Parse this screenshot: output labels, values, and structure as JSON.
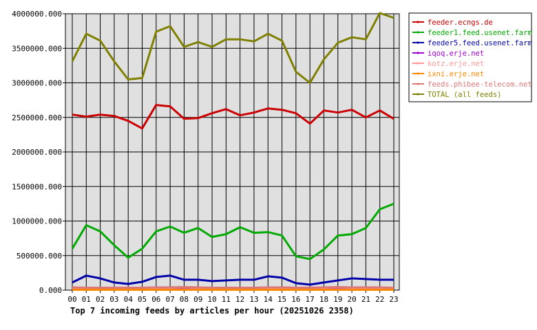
{
  "chart_data": {
    "type": "line",
    "title": "Top 7 incoming feeds by articles per hour (20251026 2358)",
    "xlabel": "",
    "ylabel": "",
    "ylim": [
      0,
      4000000
    ],
    "yticks": [
      "0.000",
      "500000.000",
      "1000000.000",
      "1500000.000",
      "2000000.000",
      "2500000.000",
      "3000000.000",
      "3500000.000",
      "4000000.000"
    ],
    "yticks_values": [
      0,
      500000,
      1000000,
      1500000,
      2000000,
      2500000,
      3000000,
      3500000,
      4000000
    ],
    "categories": [
      "00",
      "01",
      "02",
      "03",
      "04",
      "05",
      "06",
      "07",
      "08",
      "09",
      "10",
      "11",
      "12",
      "13",
      "14",
      "15",
      "16",
      "17",
      "18",
      "19",
      "20",
      "21",
      "22",
      "23"
    ],
    "grid": true,
    "legend_position": "right",
    "series": [
      {
        "name": "feeder.ecngs.de",
        "color": "#cc0000",
        "values": [
          2540000,
          2510000,
          2540000,
          2520000,
          2450000,
          2340000,
          2680000,
          2660000,
          2480000,
          2490000,
          2560000,
          2620000,
          2530000,
          2570000,
          2630000,
          2610000,
          2560000,
          2410000,
          2600000,
          2570000,
          2610000,
          2500000,
          2600000,
          2480000
        ]
      },
      {
        "name": "feeder1.feed.usenet.farm",
        "color": "#00aa00",
        "values": [
          600000,
          940000,
          850000,
          650000,
          470000,
          600000,
          850000,
          920000,
          830000,
          900000,
          770000,
          810000,
          910000,
          830000,
          840000,
          790000,
          490000,
          450000,
          590000,
          790000,
          810000,
          900000,
          1170000,
          1250000
        ]
      },
      {
        "name": "feeder5.feed.usenet.farm",
        "color": "#0000aa",
        "values": [
          110000,
          210000,
          170000,
          110000,
          90000,
          120000,
          190000,
          210000,
          150000,
          150000,
          130000,
          140000,
          150000,
          150000,
          200000,
          180000,
          100000,
          80000,
          110000,
          140000,
          170000,
          160000,
          150000,
          150000
        ]
      },
      {
        "name": "iqoq.erje.net",
        "color": "#a000cc",
        "values": [
          10000,
          10000,
          10000,
          10000,
          10000,
          10000,
          10000,
          10000,
          10000,
          10000,
          10000,
          10000,
          10000,
          10000,
          10000,
          10000,
          10000,
          10000,
          10000,
          10000,
          10000,
          10000,
          10000,
          10000
        ]
      },
      {
        "name": "kotz.erje.net",
        "color": "#ff9999",
        "values": [
          30000,
          30000,
          30000,
          30000,
          30000,
          30000,
          35000,
          35000,
          40000,
          35000,
          30000,
          30000,
          30000,
          30000,
          35000,
          35000,
          30000,
          30000,
          35000,
          40000,
          35000,
          35000,
          35000,
          30000
        ]
      },
      {
        "name": "ixni.erje.net",
        "color": "#ff8800",
        "values": [
          5000,
          5000,
          5000,
          5000,
          5000,
          5000,
          5000,
          5000,
          5000,
          5000,
          5000,
          5000,
          5000,
          5000,
          5000,
          5000,
          5000,
          5000,
          5000,
          5000,
          5000,
          5000,
          5000,
          5000
        ]
      },
      {
        "name": "feeds.phibee-telecom.net",
        "color": "#dd7777",
        "values": [
          40000,
          35000,
          35000,
          35000,
          35000,
          35000,
          40000,
          40000,
          45000,
          40000,
          35000,
          35000,
          35000,
          35000,
          40000,
          40000,
          35000,
          35000,
          40000,
          45000,
          40000,
          40000,
          40000,
          35000
        ]
      },
      {
        "name": "TOTAL (all feeds)",
        "color": "#808000",
        "values": [
          3310000,
          3710000,
          3610000,
          3310000,
          3050000,
          3070000,
          3740000,
          3820000,
          3520000,
          3590000,
          3520000,
          3630000,
          3630000,
          3600000,
          3710000,
          3610000,
          3160000,
          3000000,
          3340000,
          3580000,
          3660000,
          3630000,
          4010000,
          3940000
        ]
      }
    ]
  }
}
